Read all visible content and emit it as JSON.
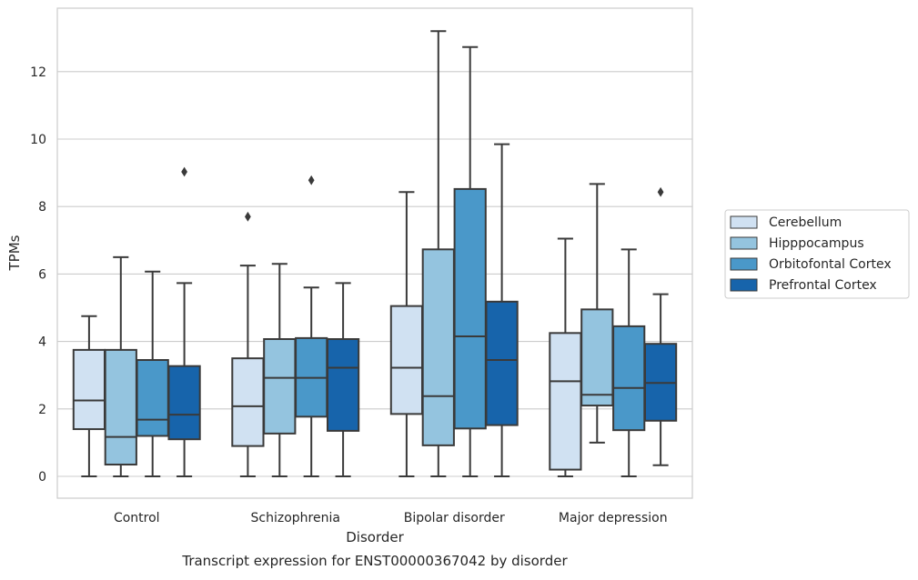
{
  "chart_data": {
    "type": "box",
    "title": "",
    "caption": "Transcript expression for ENST00000367042 by disorder",
    "xlabel": "Disorder",
    "ylabel": "TPMs",
    "ylim": [
      -0.65,
      13.9
    ],
    "yticks": [
      0,
      2,
      4,
      6,
      8,
      10,
      12
    ],
    "grid": "horizontal",
    "legend_position": "right",
    "categories": [
      "Control",
      "Schizophrenia",
      "Bipolar disorder",
      "Major depression"
    ],
    "series": [
      {
        "name": "Cerebellum",
        "color": "#d0e1f2",
        "boxes": [
          {
            "whisker_low": 0,
            "q1": 1.4,
            "median": 2.25,
            "q3": 3.75,
            "whisker_high": 4.75,
            "outliers": []
          },
          {
            "whisker_low": 0,
            "q1": 0.9,
            "median": 2.08,
            "q3": 3.5,
            "whisker_high": 6.25,
            "outliers": [
              7.7
            ]
          },
          {
            "whisker_low": 0,
            "q1": 1.85,
            "median": 3.22,
            "q3": 5.05,
            "whisker_high": 8.43,
            "outliers": []
          },
          {
            "whisker_low": 0,
            "q1": 0.2,
            "median": 2.82,
            "q3": 4.25,
            "whisker_high": 7.05,
            "outliers": []
          }
        ]
      },
      {
        "name": "Hipppocampus",
        "color": "#94c4df",
        "boxes": [
          {
            "whisker_low": 0,
            "q1": 0.35,
            "median": 1.17,
            "q3": 3.75,
            "whisker_high": 6.5,
            "outliers": []
          },
          {
            "whisker_low": 0,
            "q1": 1.27,
            "median": 2.92,
            "q3": 4.07,
            "whisker_high": 6.3,
            "outliers": []
          },
          {
            "whisker_low": 0,
            "q1": 0.92,
            "median": 2.38,
            "q3": 6.73,
            "whisker_high": 13.2,
            "outliers": []
          },
          {
            "whisker_low": 1.0,
            "q1": 2.1,
            "median": 2.42,
            "q3": 4.95,
            "whisker_high": 8.67,
            "outliers": []
          }
        ]
      },
      {
        "name": "Orbitofontal Cortex",
        "color": "#4a98c9",
        "boxes": [
          {
            "whisker_low": 0,
            "q1": 1.2,
            "median": 1.68,
            "q3": 3.45,
            "whisker_high": 6.07,
            "outliers": []
          },
          {
            "whisker_low": 0,
            "q1": 1.77,
            "median": 2.92,
            "q3": 4.1,
            "whisker_high": 5.6,
            "outliers": [
              8.78
            ]
          },
          {
            "whisker_low": 0,
            "q1": 1.42,
            "median": 4.15,
            "q3": 8.52,
            "whisker_high": 12.73,
            "outliers": []
          },
          {
            "whisker_low": 0,
            "q1": 1.37,
            "median": 2.62,
            "q3": 4.45,
            "whisker_high": 6.73,
            "outliers": []
          }
        ]
      },
      {
        "name": "Prefrontal Cortex",
        "color": "#1764ab",
        "boxes": [
          {
            "whisker_low": 0,
            "q1": 1.1,
            "median": 1.83,
            "q3": 3.27,
            "whisker_high": 5.73,
            "outliers": [
              9.03
            ]
          },
          {
            "whisker_low": 0,
            "q1": 1.35,
            "median": 3.22,
            "q3": 4.07,
            "whisker_high": 5.73,
            "outliers": []
          },
          {
            "whisker_low": 0,
            "q1": 1.52,
            "median": 3.45,
            "q3": 5.18,
            "whisker_high": 9.85,
            "outliers": []
          },
          {
            "whisker_low": 0.33,
            "q1": 1.65,
            "median": 2.77,
            "q3": 3.93,
            "whisker_high": 5.4,
            "outliers": [
              8.43
            ]
          }
        ]
      }
    ]
  }
}
